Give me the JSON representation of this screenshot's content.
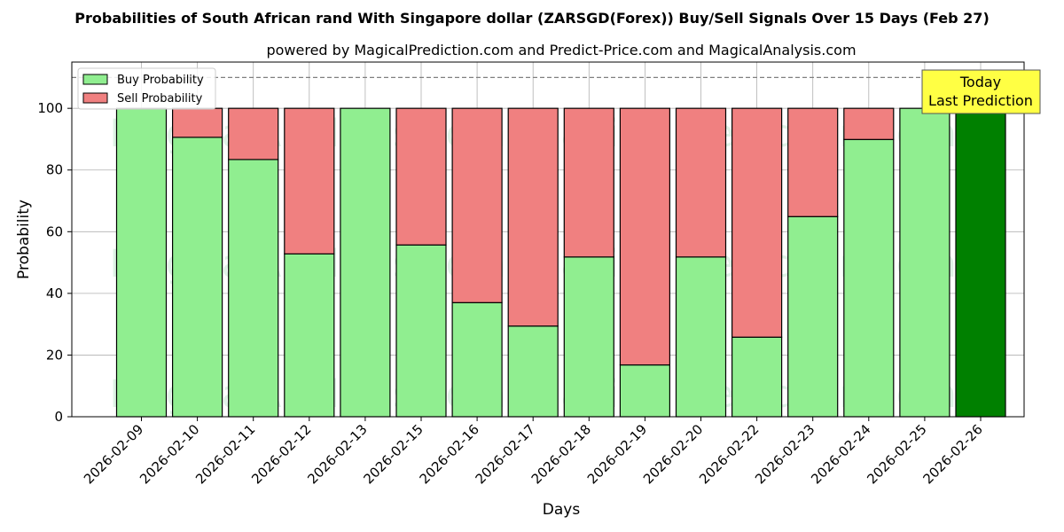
{
  "chart_data": {
    "type": "bar",
    "stacked": true,
    "title": "Probabilities of South African rand With Singapore dollar (ZARSGD(Forex)) Buy/Sell Signals Over 15 Days (Feb 27)",
    "subtitle": "powered by MagicalPrediction.com and Predict-Price.com and MagicalAnalysis.com",
    "xlabel": "Days",
    "ylabel": "Probability",
    "ylim": [
      0,
      115
    ],
    "yticks": [
      0,
      20,
      40,
      60,
      80,
      100
    ],
    "reference_line": 110,
    "grid": true,
    "legend_position": "top-left",
    "categories": [
      "2026-02-09",
      "2026-02-10",
      "2026-02-11",
      "2026-02-12",
      "2026-02-13",
      "2026-02-15",
      "2026-02-16",
      "2026-02-17",
      "2026-02-18",
      "2026-02-19",
      "2026-02-20",
      "2026-02-22",
      "2026-02-23",
      "2026-02-24",
      "2026-02-25",
      "2026-02-26"
    ],
    "series": [
      {
        "name": "Buy Probability",
        "color": "#90ee90",
        "values": [
          100,
          90.6,
          83.4,
          52.8,
          100,
          55.7,
          37.0,
          29.4,
          51.8,
          16.8,
          51.8,
          25.8,
          64.9,
          89.9,
          100,
          100
        ]
      },
      {
        "name": "Sell Probability",
        "color": "#f08080",
        "values": [
          0,
          9.4,
          16.6,
          47.2,
          0,
          44.3,
          63.0,
          70.6,
          48.2,
          83.2,
          48.2,
          74.2,
          35.1,
          10.1,
          0,
          0
        ]
      }
    ],
    "highlight": {
      "index": 15,
      "color": "#008000",
      "label_lines": [
        "Today",
        "Last Prediction"
      ],
      "box_color": "#ffff44"
    },
    "watermarks": [
      "MagicalAnalysis.com",
      "MagicalPrediction.com"
    ]
  }
}
